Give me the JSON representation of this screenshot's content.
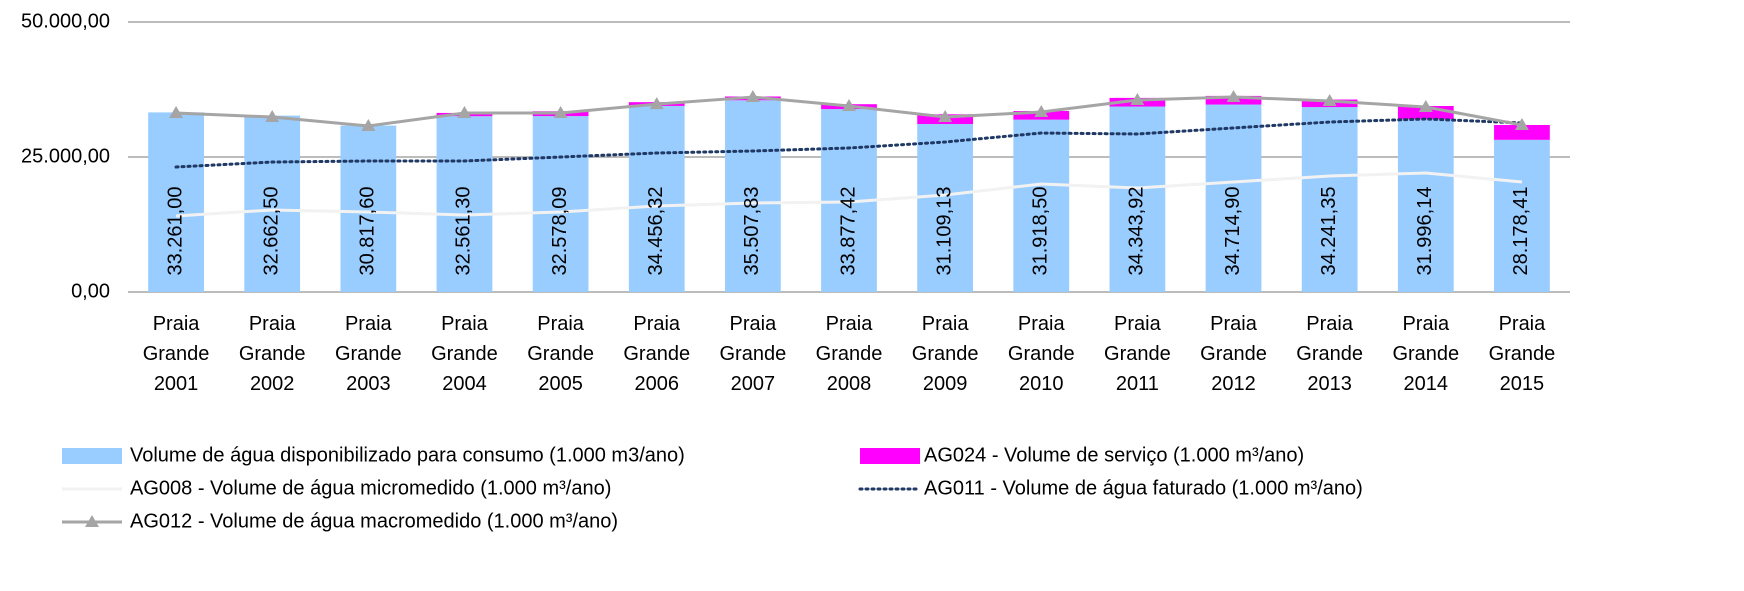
{
  "chart_data": {
    "type": "bar",
    "categories": [
      "Praia Grande 2001",
      "Praia Grande 2002",
      "Praia Grande 2003",
      "Praia Grande 2004",
      "Praia Grande 2005",
      "Praia Grande 2006",
      "Praia Grande 2007",
      "Praia Grande 2008",
      "Praia Grande 2009",
      "Praia Grande 2010",
      "Praia Grande 2011",
      "Praia Grande 2012",
      "Praia Grande 2013",
      "Praia Grande 2014",
      "Praia Grande 2015"
    ],
    "ylim": [
      0,
      50000
    ],
    "yticks": [
      {
        "value": 0,
        "label": "0,00"
      },
      {
        "value": 25000,
        "label": "25.000,00"
      },
      {
        "value": 50000,
        "label": "50.000,00"
      }
    ],
    "grid": true,
    "legend": "bottom",
    "series": [
      {
        "name": "Volume de água disponibilizado para consumo (1.000 m3/ano)",
        "type": "bar",
        "color": "#99ccff",
        "values": [
          33261.0,
          32662.5,
          30817.6,
          32561.3,
          32578.09,
          34456.32,
          35507.83,
          33877.42,
          31109.13,
          31918.5,
          34343.92,
          34714.9,
          34241.35,
          31996.14,
          28178.41
        ],
        "value_labels": [
          "33.261,00",
          "32.662,50",
          "30.817,60",
          "32.561,30",
          "32.578,09",
          "34.456,32",
          "35.507,83",
          "33.877,42",
          "31.109,13",
          "31.918,50",
          "34.343,92",
          "34.714,90",
          "34.241,35",
          "31.996,14",
          "28.178,41"
        ]
      },
      {
        "name": "AG024 - Volume de serviço (1.000 m³/ano)",
        "type": "bar",
        "color": "#ff00ff",
        "values": [
          0,
          0,
          0,
          600,
          900,
          700,
          700,
          900,
          1800,
          1600,
          1600,
          1600,
          1400,
          2450,
          2750
        ]
      },
      {
        "name": "AG008 - Volume de água micromedido (1.000 m³/ano)",
        "type": "line",
        "color": "#f2f2f2",
        "values": [
          14070,
          15190,
          14810,
          14260,
          14810,
          15930,
          16480,
          16670,
          17960,
          20000,
          19260,
          20370,
          21480,
          22040,
          20370
        ]
      },
      {
        "name": "AG011 - Volume de água faturado (1.000 m³/ano)",
        "type": "line",
        "color": "#1f3864",
        "style": "dotted",
        "values": [
          23150,
          24070,
          24260,
          24260,
          25000,
          25740,
          26110,
          26670,
          27780,
          29440,
          29260,
          30370,
          31480,
          32040,
          31300
        ]
      },
      {
        "name": "AG012 - Volume de água macromedido (1.000 m³/ano)",
        "type": "line",
        "color": "#a5a5a5",
        "marker": "triangle",
        "values": [
          33150,
          32400,
          30740,
          33150,
          33150,
          34800,
          36100,
          34440,
          32400,
          33330,
          35550,
          36100,
          35370,
          34260,
          30930
        ]
      }
    ]
  }
}
